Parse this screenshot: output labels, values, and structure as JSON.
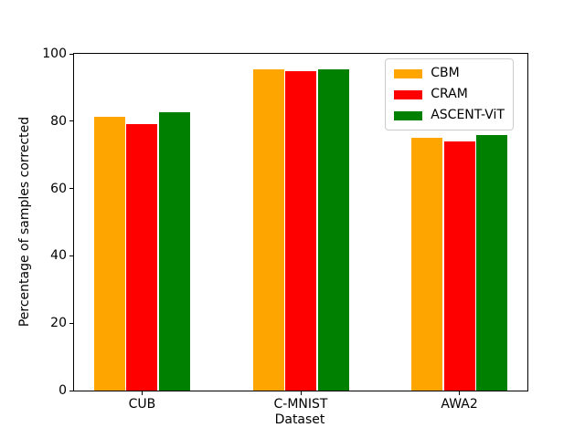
{
  "chart_data": {
    "type": "bar",
    "title": "",
    "xlabel": "Dataset",
    "ylabel": "Percentage of samples corrected",
    "categories": [
      "CUB",
      "C-MNIST",
      "AWA2"
    ],
    "series": [
      {
        "name": "CBM",
        "color": "#FFA500",
        "values": [
          81.2,
          95.4,
          75.2
        ]
      },
      {
        "name": "CRAM",
        "color": "#FF0000",
        "values": [
          79.1,
          94.9,
          74.1
        ]
      },
      {
        "name": "ASCENT-ViT",
        "color": "#008000",
        "values": [
          82.6,
          95.3,
          76.0
        ]
      }
    ],
    "ylim": [
      0,
      100
    ],
    "yticks": [
      0,
      20,
      40,
      60,
      80,
      100
    ],
    "grid": false,
    "legend_position": "upper right"
  }
}
